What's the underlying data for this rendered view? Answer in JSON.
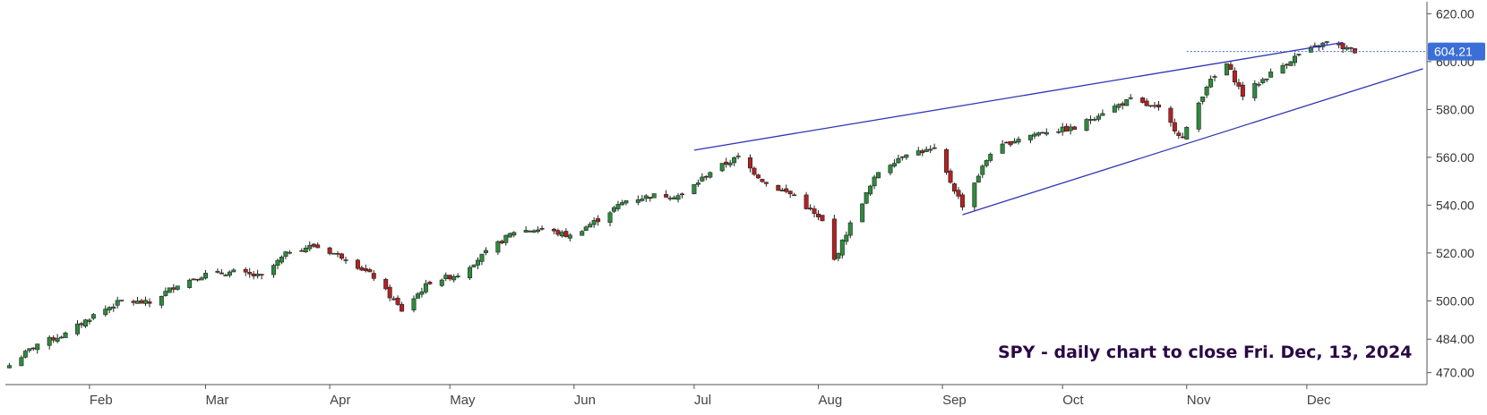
{
  "chart_data": {
    "type": "candlestick",
    "symbol": "SPY",
    "annotation": "SPY - daily chart to close Fri. Dec, 13, 2024",
    "last_price": "604.21",
    "ylim": [
      465,
      625
    ],
    "y_ticks": [
      {
        "value": 620,
        "label": "620.00"
      },
      {
        "value": 600,
        "label": "600.00"
      },
      {
        "value": 580,
        "label": "580.00"
      },
      {
        "value": 560,
        "label": "560.00"
      },
      {
        "value": 540,
        "label": "540.00"
      },
      {
        "value": 520,
        "label": "520.00"
      },
      {
        "value": 500,
        "label": "500.00"
      },
      {
        "value": 484,
        "label": "484.00"
      },
      {
        "value": 470,
        "label": "470.00"
      }
    ],
    "x_start": "2024-01-11",
    "x_end": "2024-12-31",
    "x_ticks": [
      {
        "date": "2024-02-01",
        "label": "Feb"
      },
      {
        "date": "2024-03-01",
        "label": "Mar"
      },
      {
        "date": "2024-04-01",
        "label": "Apr"
      },
      {
        "date": "2024-05-01",
        "label": "May"
      },
      {
        "date": "2024-06-01",
        "label": "Jun"
      },
      {
        "date": "2024-07-01",
        "label": "Jul"
      },
      {
        "date": "2024-08-01",
        "label": "Aug"
      },
      {
        "date": "2024-09-01",
        "label": "Sep"
      },
      {
        "date": "2024-10-01",
        "label": "Oct"
      },
      {
        "date": "2024-11-01",
        "label": "Nov"
      },
      {
        "date": "2024-12-01",
        "label": "Dec"
      }
    ],
    "trendlines": [
      {
        "from": {
          "date": "2024-07-01",
          "price": 563
        },
        "to": {
          "date": "2024-12-10",
          "price": 608
        },
        "color": "#2f35b5"
      },
      {
        "from": {
          "date": "2024-09-06",
          "price": 536
        },
        "to": {
          "date": "2024-12-30",
          "price": 597
        },
        "color": "#2f35b5"
      }
    ],
    "colors": {
      "up": "#2e8b3e",
      "down": "#b22222",
      "wick": "#222222",
      "trend": "#2f35b5",
      "price_tag": "#3b6fd8"
    },
    "anchors": [
      [
        "2024-01-12",
        473
      ],
      [
        "2024-01-19",
        482
      ],
      [
        "2024-01-26",
        486
      ],
      [
        "2024-02-02",
        494
      ],
      [
        "2024-02-09",
        500
      ],
      [
        "2024-02-16",
        499
      ],
      [
        "2024-02-23",
        507
      ],
      [
        "2024-03-01",
        511
      ],
      [
        "2024-03-08",
        512
      ],
      [
        "2024-03-15",
        510
      ],
      [
        "2024-03-22",
        521
      ],
      [
        "2024-03-28",
        523
      ],
      [
        "2024-04-05",
        518
      ],
      [
        "2024-04-12",
        510
      ],
      [
        "2024-04-19",
        496
      ],
      [
        "2024-04-26",
        508
      ],
      [
        "2024-05-03",
        511
      ],
      [
        "2024-05-10",
        520
      ],
      [
        "2024-05-17",
        529
      ],
      [
        "2024-05-24",
        530
      ],
      [
        "2024-05-31",
        527
      ],
      [
        "2024-06-07",
        534
      ],
      [
        "2024-06-14",
        542
      ],
      [
        "2024-06-21",
        544
      ],
      [
        "2024-06-28",
        544
      ],
      [
        "2024-07-05",
        554
      ],
      [
        "2024-07-12",
        560
      ],
      [
        "2024-07-19",
        549
      ],
      [
        "2024-07-26",
        544
      ],
      [
        "2024-08-02",
        533
      ],
      [
        "2024-08-05",
        517
      ],
      [
        "2024-08-09",
        532
      ],
      [
        "2024-08-16",
        554
      ],
      [
        "2024-08-23",
        562
      ],
      [
        "2024-08-30",
        563
      ],
      [
        "2024-09-06",
        540
      ],
      [
        "2024-09-13",
        562
      ],
      [
        "2024-09-20",
        568
      ],
      [
        "2024-09-27",
        571
      ],
      [
        "2024-10-04",
        572
      ],
      [
        "2024-10-11",
        579
      ],
      [
        "2024-10-18",
        584
      ],
      [
        "2024-10-25",
        580
      ],
      [
        "2024-10-31",
        568
      ],
      [
        "2024-11-06",
        590
      ],
      [
        "2024-11-11",
        599
      ],
      [
        "2024-11-15",
        586
      ],
      [
        "2024-11-22",
        595
      ],
      [
        "2024-11-29",
        603
      ],
      [
        "2024-12-06",
        608
      ],
      [
        "2024-12-13",
        604.21
      ]
    ]
  }
}
